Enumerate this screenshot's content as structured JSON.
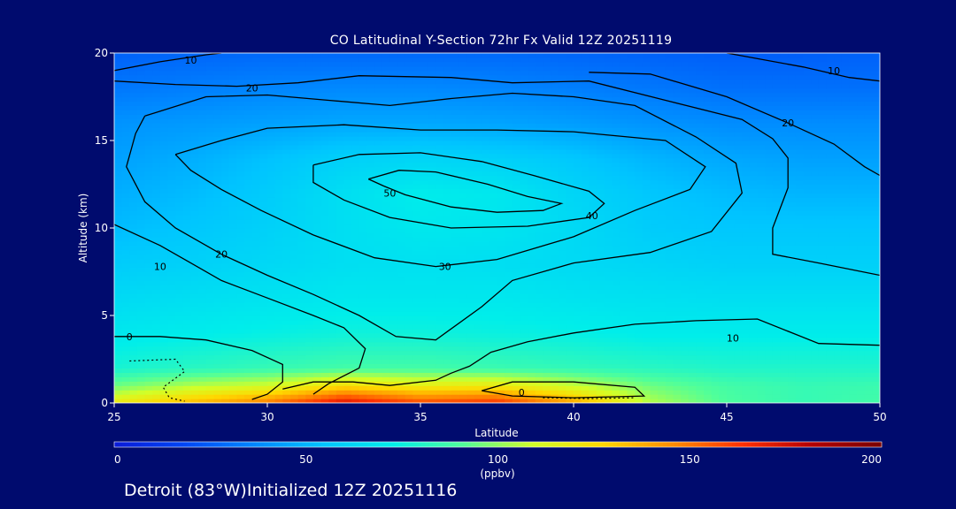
{
  "chart_data": {
    "type": "heatmap",
    "title": "CO Latitudinal Y-Section 72hr  Fx Valid 12Z 20251119",
    "xlabel": "Latitude",
    "ylabel": "Altitude (km)",
    "xlim": [
      25,
      50
    ],
    "ylim": [
      0,
      20
    ],
    "xticks": [
      25,
      30,
      35,
      40,
      45,
      50
    ],
    "yticks": [
      0,
      5,
      10,
      15,
      20
    ],
    "colorbar": {
      "min": 0,
      "max": 200,
      "ticks": [
        0,
        50,
        100,
        150,
        200
      ],
      "unit_label": "(ppbv)",
      "colors": [
        "#0a1bd8",
        "#0046f5",
        "#0087ff",
        "#00c4ff",
        "#00eeea",
        "#50ff9a",
        "#d2ff28",
        "#ffd800",
        "#ff8c00",
        "#ff3000",
        "#b40000",
        "#7a0000"
      ]
    },
    "contour_levels": [
      0,
      10,
      20,
      30,
      40,
      50
    ],
    "field": {
      "note_units": "ppbv",
      "x": [
        25,
        27.5,
        30,
        32.5,
        35,
        37.5,
        40,
        42.5,
        45,
        47.5,
        50
      ],
      "y": [
        0,
        1,
        2,
        4,
        6,
        8,
        10,
        12,
        14,
        16,
        18,
        20
      ],
      "values": [
        [
          120,
          135,
          150,
          175,
          160,
          165,
          140,
          105,
          90,
          85,
          88
        ],
        [
          95,
          105,
          110,
          125,
          118,
          120,
          108,
          95,
          88,
          85,
          86
        ],
        [
          78,
          82,
          85,
          88,
          88,
          86,
          84,
          82,
          80,
          80,
          80
        ],
        [
          70,
          72,
          74,
          76,
          76,
          75,
          74,
          72,
          72,
          72,
          72
        ],
        [
          64,
          66,
          68,
          70,
          70,
          70,
          68,
          67,
          66,
          66,
          66
        ],
        [
          58,
          60,
          63,
          66,
          67,
          66,
          64,
          62,
          60,
          60,
          60
        ],
        [
          52,
          56,
          60,
          66,
          70,
          69,
          64,
          58,
          56,
          56,
          56
        ],
        [
          48,
          52,
          58,
          66,
          72,
          70,
          62,
          56,
          52,
          50,
          50
        ],
        [
          44,
          48,
          54,
          60,
          62,
          60,
          56,
          50,
          46,
          44,
          44
        ],
        [
          40,
          42,
          44,
          46,
          46,
          45,
          43,
          40,
          38,
          38,
          38
        ],
        [
          32,
          34,
          36,
          37,
          37,
          36,
          34,
          32,
          30,
          30,
          30
        ],
        [
          26,
          27,
          28,
          28,
          28,
          28,
          27,
          26,
          25,
          25,
          26
        ]
      ]
    },
    "contours": [
      {
        "label": "50",
        "label_at": [
          34.0,
          12.0
        ],
        "dashed": false,
        "points": [
          [
            33.3,
            12.8
          ],
          [
            34.3,
            13.3
          ],
          [
            35.5,
            13.2
          ],
          [
            37.2,
            12.5
          ],
          [
            38.5,
            11.8
          ],
          [
            39.6,
            11.4
          ],
          [
            39.0,
            11.0
          ],
          [
            37.5,
            10.9
          ],
          [
            36.0,
            11.2
          ],
          [
            34.5,
            11.9
          ],
          [
            33.8,
            12.4
          ],
          [
            33.3,
            12.8
          ]
        ]
      },
      {
        "label": "40",
        "label_at": [
          40.6,
          10.7
        ],
        "dashed": false,
        "points": [
          [
            31.5,
            13.6
          ],
          [
            33.0,
            14.2
          ],
          [
            35.0,
            14.3
          ],
          [
            37.0,
            13.8
          ],
          [
            38.7,
            13.0
          ],
          [
            40.5,
            12.1
          ],
          [
            41.0,
            11.4
          ],
          [
            40.5,
            10.6
          ],
          [
            38.5,
            10.1
          ],
          [
            36.0,
            10.0
          ],
          [
            34.0,
            10.6
          ],
          [
            32.5,
            11.6
          ],
          [
            31.5,
            12.6
          ],
          [
            31.5,
            13.6
          ]
        ]
      },
      {
        "label": "30",
        "label_at": [
          35.8,
          7.8
        ],
        "dashed": false,
        "points": [
          [
            27.0,
            14.2
          ],
          [
            28.5,
            15.0
          ],
          [
            30.0,
            15.7
          ],
          [
            32.5,
            15.9
          ],
          [
            35.0,
            15.6
          ],
          [
            37.5,
            15.6
          ],
          [
            40.0,
            15.5
          ],
          [
            43.0,
            15.0
          ],
          [
            44.3,
            13.5
          ],
          [
            43.8,
            12.2
          ],
          [
            42.0,
            11.0
          ],
          [
            40.0,
            9.5
          ],
          [
            37.5,
            8.2
          ],
          [
            35.5,
            7.8
          ],
          [
            33.5,
            8.3
          ],
          [
            31.5,
            9.6
          ],
          [
            29.8,
            11.0
          ],
          [
            28.5,
            12.2
          ],
          [
            27.5,
            13.3
          ],
          [
            27.0,
            14.2
          ]
        ]
      },
      {
        "label": "20",
        "label_at": [
          28.5,
          8.5
        ],
        "dashed": false,
        "points": [
          [
            26.0,
            16.4
          ],
          [
            28.0,
            17.5
          ],
          [
            30.0,
            17.6
          ],
          [
            32.0,
            17.3
          ],
          [
            34.0,
            17.0
          ],
          [
            36.0,
            17.4
          ],
          [
            38.0,
            17.7
          ],
          [
            40.0,
            17.5
          ],
          [
            42.0,
            17.0
          ],
          [
            44.0,
            15.2
          ],
          [
            45.3,
            13.7
          ],
          [
            45.5,
            12.0
          ],
          [
            44.5,
            9.8
          ],
          [
            42.5,
            8.6
          ],
          [
            40.0,
            8.0
          ],
          [
            38.0,
            7.0
          ],
          [
            37.0,
            5.5
          ],
          [
            35.5,
            3.6
          ],
          [
            34.2,
            3.8
          ],
          [
            33.0,
            5.0
          ],
          [
            31.5,
            6.2
          ],
          [
            30.0,
            7.3
          ],
          [
            28.5,
            8.5
          ],
          [
            27.0,
            10.0
          ],
          [
            26.0,
            11.5
          ],
          [
            25.4,
            13.5
          ],
          [
            25.7,
            15.4
          ],
          [
            26.0,
            16.4
          ]
        ]
      },
      {
        "label": "20",
        "label_at": [
          29.5,
          18.0
        ],
        "dashed": false,
        "points": [
          [
            25.0,
            18.4
          ],
          [
            27.0,
            18.2
          ],
          [
            29.0,
            18.1
          ],
          [
            31.0,
            18.3
          ],
          [
            33.0,
            18.7
          ],
          [
            36.0,
            18.6
          ],
          [
            38.0,
            18.3
          ],
          [
            40.5,
            18.4
          ],
          [
            43.0,
            17.3
          ],
          [
            45.5,
            16.2
          ],
          [
            46.5,
            15.1
          ],
          [
            47.0,
            14.0
          ],
          [
            47.0,
            12.3
          ],
          [
            46.5,
            10.0
          ],
          [
            46.5,
            8.5
          ],
          [
            48.0,
            8.0
          ],
          [
            50.0,
            7.3
          ]
        ]
      },
      {
        "label": "20",
        "label_at": [
          47.0,
          16.0
        ],
        "dashed": false,
        "points": [
          [
            40.5,
            18.9
          ],
          [
            42.5,
            18.8
          ],
          [
            45.0,
            17.5
          ],
          [
            47.0,
            16.0
          ],
          [
            48.5,
            14.8
          ],
          [
            49.5,
            13.5
          ],
          [
            50.0,
            13.0
          ]
        ]
      },
      {
        "label": "10",
        "label_at": [
          26.5,
          7.8
        ],
        "dashed": false,
        "points": [
          [
            25.0,
            10.2
          ],
          [
            26.5,
            9.0
          ],
          [
            27.5,
            8.0
          ],
          [
            28.5,
            7.0
          ],
          [
            30.0,
            6.0
          ],
          [
            31.5,
            5.0
          ],
          [
            32.5,
            4.3
          ],
          [
            33.2,
            3.1
          ],
          [
            33.0,
            2.0
          ],
          [
            32.0,
            1.1
          ],
          [
            31.5,
            0.5
          ]
        ]
      },
      {
        "label": "10",
        "label_at": [
          45.2,
          3.7
        ],
        "dashed": false,
        "points": [
          [
            30.5,
            0.8
          ],
          [
            31.5,
            1.2
          ],
          [
            32.8,
            1.2
          ],
          [
            34.0,
            1.0
          ],
          [
            35.5,
            1.3
          ],
          [
            36.0,
            1.7
          ],
          [
            36.6,
            2.1
          ],
          [
            37.3,
            2.9
          ],
          [
            38.5,
            3.5
          ],
          [
            40.0,
            4.0
          ],
          [
            42.0,
            4.5
          ],
          [
            44.0,
            4.7
          ],
          [
            46.0,
            4.8
          ],
          [
            48.0,
            3.4
          ],
          [
            50.0,
            3.3
          ]
        ]
      },
      {
        "label": "10",
        "label_at": [
          48.5,
          19.0
        ],
        "dashed": false,
        "points": [
          [
            45.0,
            20.0
          ],
          [
            47.5,
            19.2
          ],
          [
            49.0,
            18.6
          ],
          [
            50.0,
            18.4
          ]
        ]
      },
      {
        "label": "10",
        "label_at": [
          27.5,
          19.6
        ],
        "dashed": false,
        "points": [
          [
            25.0,
            19.0
          ],
          [
            26.5,
            19.5
          ],
          [
            28.0,
            19.9
          ],
          [
            28.5,
            20.0
          ]
        ]
      },
      {
        "label": "0",
        "label_at": [
          25.5,
          3.8
        ],
        "dashed": false,
        "points": [
          [
            25.0,
            3.8
          ],
          [
            26.5,
            3.8
          ],
          [
            28.0,
            3.6
          ],
          [
            29.5,
            3.0
          ],
          [
            30.5,
            2.2
          ],
          [
            30.5,
            1.2
          ],
          [
            30.0,
            0.5
          ],
          [
            29.5,
            0.2
          ]
        ]
      },
      {
        "label": "0",
        "label_at": [
          38.3,
          0.6
        ],
        "dashed": false,
        "points": [
          [
            37.0,
            0.7
          ],
          [
            38.0,
            1.2
          ],
          [
            40.0,
            1.2
          ],
          [
            42.0,
            0.9
          ],
          [
            42.3,
            0.4
          ],
          [
            40.0,
            0.3
          ],
          [
            38.0,
            0.4
          ],
          [
            37.0,
            0.7
          ]
        ]
      },
      {
        "label": "",
        "label_at": null,
        "dashed": true,
        "points": [
          [
            25.5,
            2.4
          ],
          [
            27.0,
            2.5
          ],
          [
            27.3,
            1.8
          ],
          [
            26.6,
            0.9
          ],
          [
            26.8,
            0.3
          ],
          [
            27.3,
            0.1
          ]
        ]
      },
      {
        "label": "",
        "label_at": null,
        "dashed": true,
        "points": [
          [
            39.0,
            0.3
          ],
          [
            40.5,
            0.25
          ],
          [
            42.0,
            0.3
          ]
        ]
      }
    ],
    "legend": "colorbar-bottom"
  },
  "footer": {
    "station": "Detroit (83°W)Initialized 12Z 20251116"
  }
}
